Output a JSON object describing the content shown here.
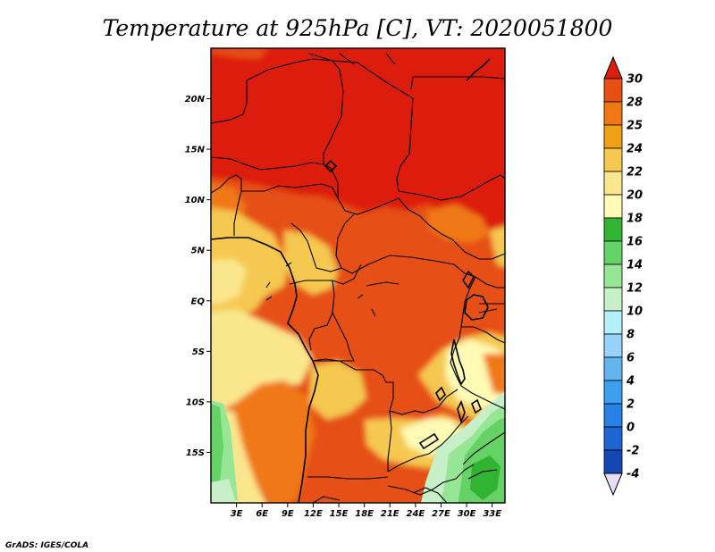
{
  "title": "Temperature at 925hPa [C], VT: 2020051800",
  "credit": "GrADS: IGES/COLA",
  "chart_data": {
    "type": "heatmap",
    "title": "Temperature at 925hPa [C], VT: 2020051800",
    "variable": "Temperature at 925hPa",
    "units": "C",
    "valid_time": "2020051800",
    "xlim": [
      0,
      34.5
    ],
    "ylim": [
      -20,
      25
    ],
    "x_ticks": [
      3,
      6,
      9,
      12,
      15,
      18,
      21,
      24,
      27,
      30,
      33
    ],
    "x_tick_labels": [
      "3E",
      "6E",
      "9E",
      "12E",
      "15E",
      "18E",
      "21E",
      "24E",
      "27E",
      "30E",
      "33E"
    ],
    "y_ticks": [
      20,
      15,
      10,
      5,
      0,
      -5,
      -10,
      -15
    ],
    "y_tick_labels": [
      "20N",
      "15N",
      "10N",
      "5N",
      "EQ",
      "5S",
      "10S",
      "15S"
    ],
    "colorbar": {
      "levels": [
        -4,
        -2,
        0,
        2,
        4,
        6,
        8,
        10,
        12,
        14,
        16,
        18,
        20,
        22,
        24,
        25,
        28,
        30
      ],
      "labels": [
        "-4",
        "-2",
        "0",
        "2",
        "4",
        "6",
        "8",
        "10",
        "12",
        "14",
        "16",
        "18",
        "20",
        "22",
        "24",
        "25",
        "28",
        "30"
      ],
      "colors": [
        "#0a0a78",
        "#1446b4",
        "#1e64d2",
        "#2882e6",
        "#3ca0f0",
        "#64b4f0",
        "#96d2fa",
        "#b4f0fa",
        "#c8f0c8",
        "#96e696",
        "#64d264",
        "#32b432",
        "#fffab4",
        "#fae68c",
        "#f5c850",
        "#f0a014",
        "#f07814",
        "#e65014",
        "#dc1e0a",
        "#e6dcf5"
      ],
      "extend": "both"
    },
    "field_description": "Sahara and Sahel north of about 10N at 28-30 C; Congo basin and central Africa 25-28 C; Atlantic coast, Angola plateau and the East African highlands cooler at 18-24 C; southeast corner (Zimbabwe/Mozambique) down to 14-18 C."
  }
}
